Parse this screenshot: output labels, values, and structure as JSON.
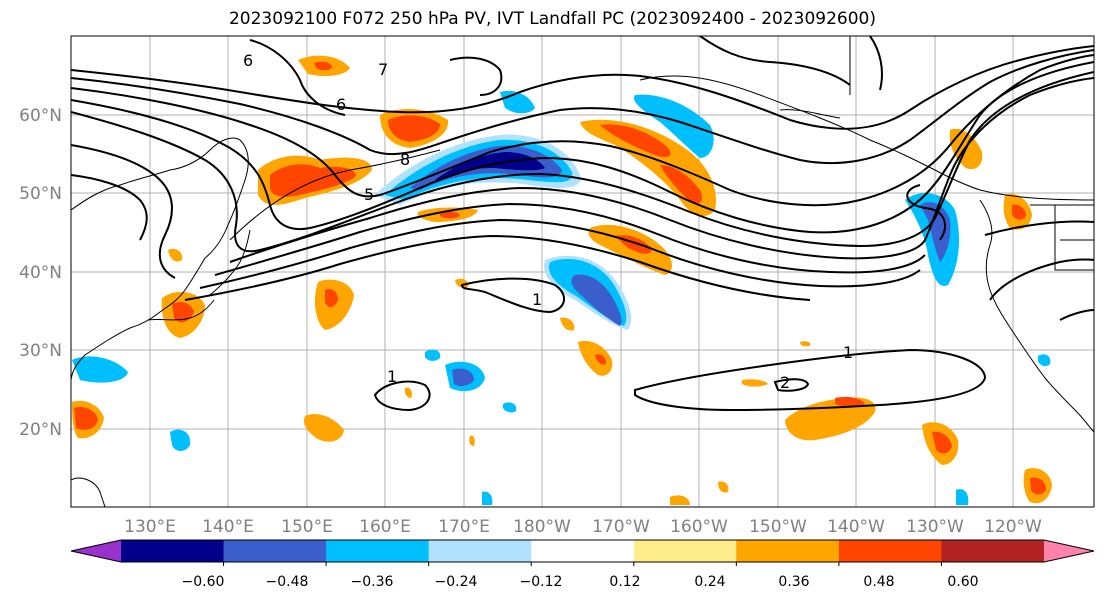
{
  "title": "2023092100 F072 250 hPa PV, IVT Landfall PC (2023092400 - 2023092600)",
  "latitude_labels": [
    "60°N",
    "50°N",
    "40°N",
    "30°N",
    "20°N"
  ],
  "longitude_labels": [
    "130°E",
    "140°E",
    "150°E",
    "160°E",
    "170°E",
    "180°W",
    "170°W",
    "160°W",
    "150°W",
    "140°W",
    "130°W",
    "120°W"
  ],
  "colorbar": {
    "tick_labels": [
      "−0.60",
      "−0.48",
      "−0.36",
      "−0.24",
      "−0.12",
      "0.12",
      "0.24",
      "0.36",
      "0.48",
      "0.60"
    ],
    "colors": [
      "#9932cc",
      "#00008b",
      "#3a5fcd",
      "#00bfff",
      "#b0e2ff",
      "#ffffff",
      "#ffec8b",
      "#ffa500",
      "#ff4500",
      "#b22222",
      "#ff82ab"
    ]
  },
  "contour_labels": {
    "one_a": "1",
    "one_b": "1",
    "one_c": "1",
    "two": "2",
    "six_a": "6",
    "six_b": "6",
    "eight": "8",
    "five": "5",
    "seven": "7"
  }
}
